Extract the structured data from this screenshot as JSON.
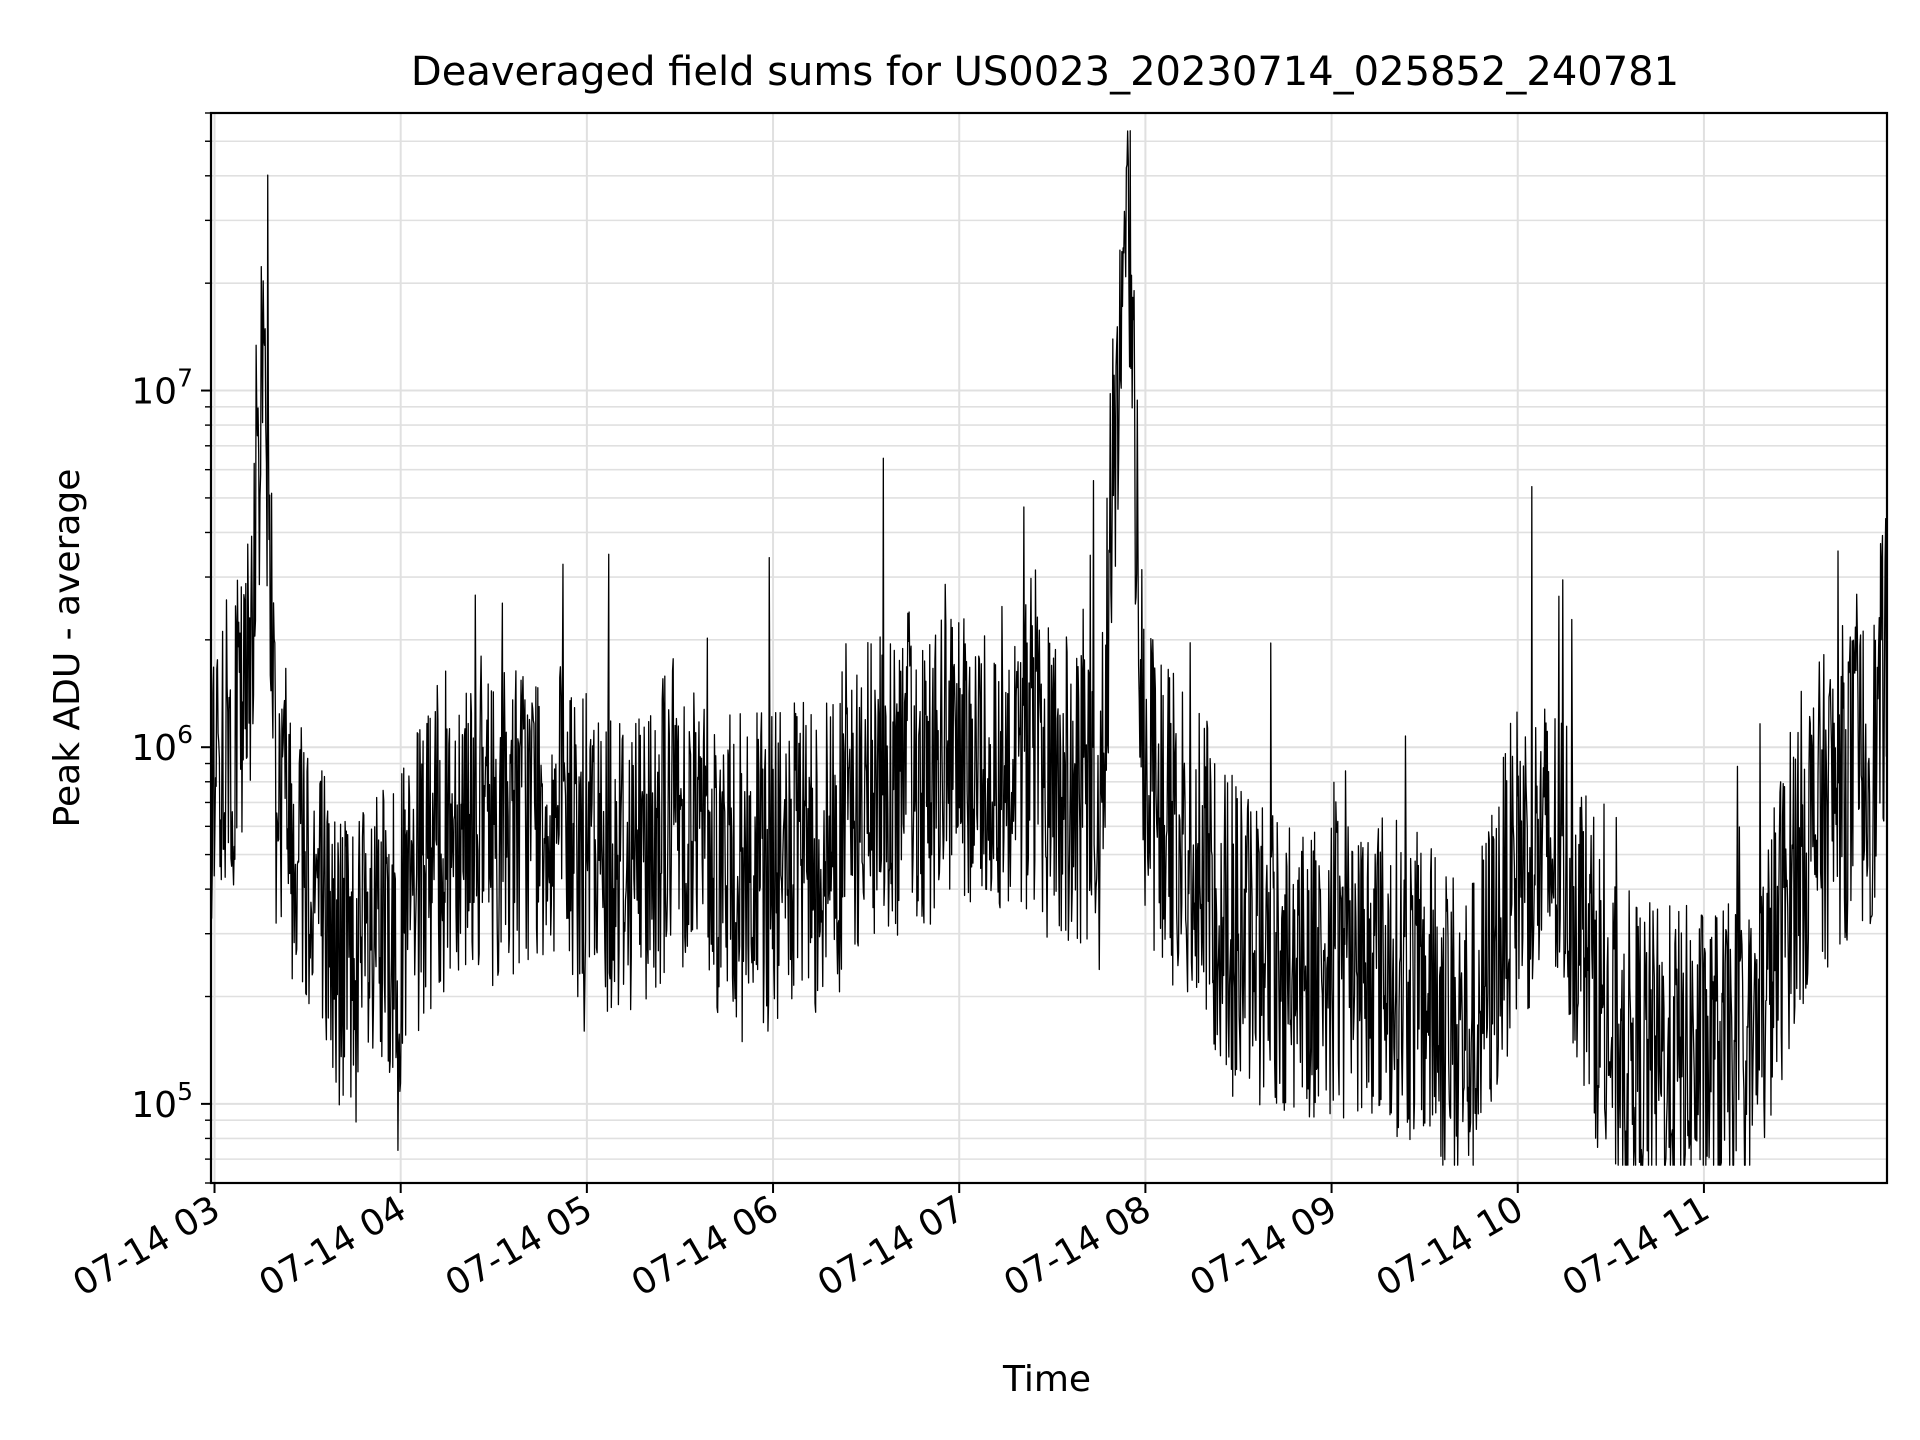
{
  "chart_data": {
    "type": "line",
    "title": "Deaveraged field sums for US0023_20230714_025852_240781",
    "xlabel": "Time",
    "ylabel": "Peak ADU - average",
    "x_ticks": [
      "07-14 03",
      "07-14 04",
      "07-14 05",
      "07-14 06",
      "07-14 07",
      "07-14 08",
      "07-14 09",
      "07-14 10",
      "07-14 11"
    ],
    "y_ticks": [
      {
        "base": "10",
        "exp": "5",
        "value": 100000
      },
      {
        "base": "10",
        "exp": "6",
        "value": 1000000
      },
      {
        "base": "10",
        "exp": "7",
        "value": 10000000
      }
    ],
    "x_range": [
      "2023-07-14T02:58:52",
      "2023-07-14T11:59:00"
    ],
    "y_scale": "log",
    "ylim": [
      60000,
      60000000
    ],
    "grid": true,
    "line_color": "#000000",
    "series": [
      {
        "x": [
          "2023-07-14T03:00:00",
          "2023-07-14T03:10:00",
          "2023-07-14T03:16:00",
          "2023-07-14T03:20:00",
          "2023-07-14T03:30:00",
          "2023-07-14T03:40:00",
          "2023-07-14T03:50:00",
          "2023-07-14T04:00:00",
          "2023-07-14T04:10:00",
          "2023-07-14T04:20:00",
          "2023-07-14T04:30:00",
          "2023-07-14T04:45:00",
          "2023-07-14T05:00:00",
          "2023-07-14T05:15:00",
          "2023-07-14T05:30:00",
          "2023-07-14T05:45:00",
          "2023-07-14T06:00:00",
          "2023-07-14T06:15:00",
          "2023-07-14T06:30:00",
          "2023-07-14T06:45:00",
          "2023-07-14T07:00:00",
          "2023-07-14T07:18:00",
          "2023-07-14T07:30:00",
          "2023-07-14T07:45:00",
          "2023-07-14T07:54:00",
          "2023-07-14T08:00:00",
          "2023-07-14T08:15:00",
          "2023-07-14T08:30:00",
          "2023-07-14T08:45:00",
          "2023-07-14T09:00:00",
          "2023-07-14T09:15:00",
          "2023-07-14T09:30:00",
          "2023-07-14T09:45:00",
          "2023-07-14T10:00:00",
          "2023-07-14T10:15:00",
          "2023-07-14T10:30:00",
          "2023-07-14T10:45:00",
          "2023-07-14T11:00:00",
          "2023-07-14T11:15:00",
          "2023-07-14T11:30:00",
          "2023-07-14T11:45:00",
          "2023-07-14T11:55:00",
          "2023-07-14T11:59:00"
        ],
        "y": [
          900000,
          1200000,
          14500000,
          800000,
          500000,
          250000,
          250000,
          300000,
          500000,
          700000,
          600000,
          700000,
          500000,
          500000,
          700000,
          450000,
          450000,
          500000,
          700000,
          900000,
          800000,
          1000000,
          800000,
          600000,
          45000000,
          800000,
          500000,
          300000,
          250000,
          250000,
          250000,
          200000,
          150000,
          500000,
          500000,
          150000,
          130000,
          130000,
          130000,
          500000,
          800000,
          900000,
          2000000
        ]
      }
    ]
  }
}
